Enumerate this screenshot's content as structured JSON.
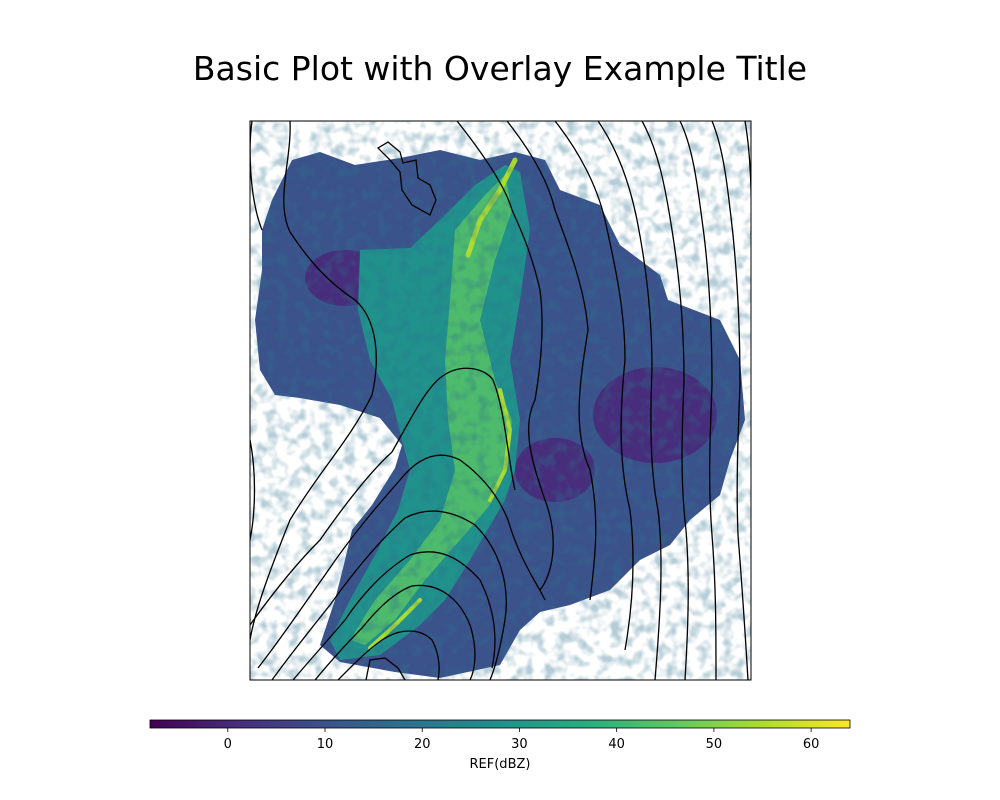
{
  "chart_data": {
    "type": "heatmap",
    "title": "Basic Plot with Overlay Example Title",
    "colormap": "viridis",
    "colors": [
      "#440154",
      "#3b528b",
      "#21918c",
      "#5ec962",
      "#fde725"
    ],
    "contour_color": "#000000",
    "colorbar": {
      "label": "REF(dBZ)",
      "range": [
        -8,
        64
      ],
      "ticks": [
        0,
        10,
        20,
        30,
        40,
        50,
        60
      ],
      "tick_labels": [
        "0",
        "10",
        "20",
        "30",
        "40",
        "50",
        "60"
      ],
      "orientation": "horizontal",
      "placement": "bottom"
    },
    "axes": {
      "xticks": "none",
      "yticks": "none",
      "grid": false
    },
    "legend": "none"
  }
}
